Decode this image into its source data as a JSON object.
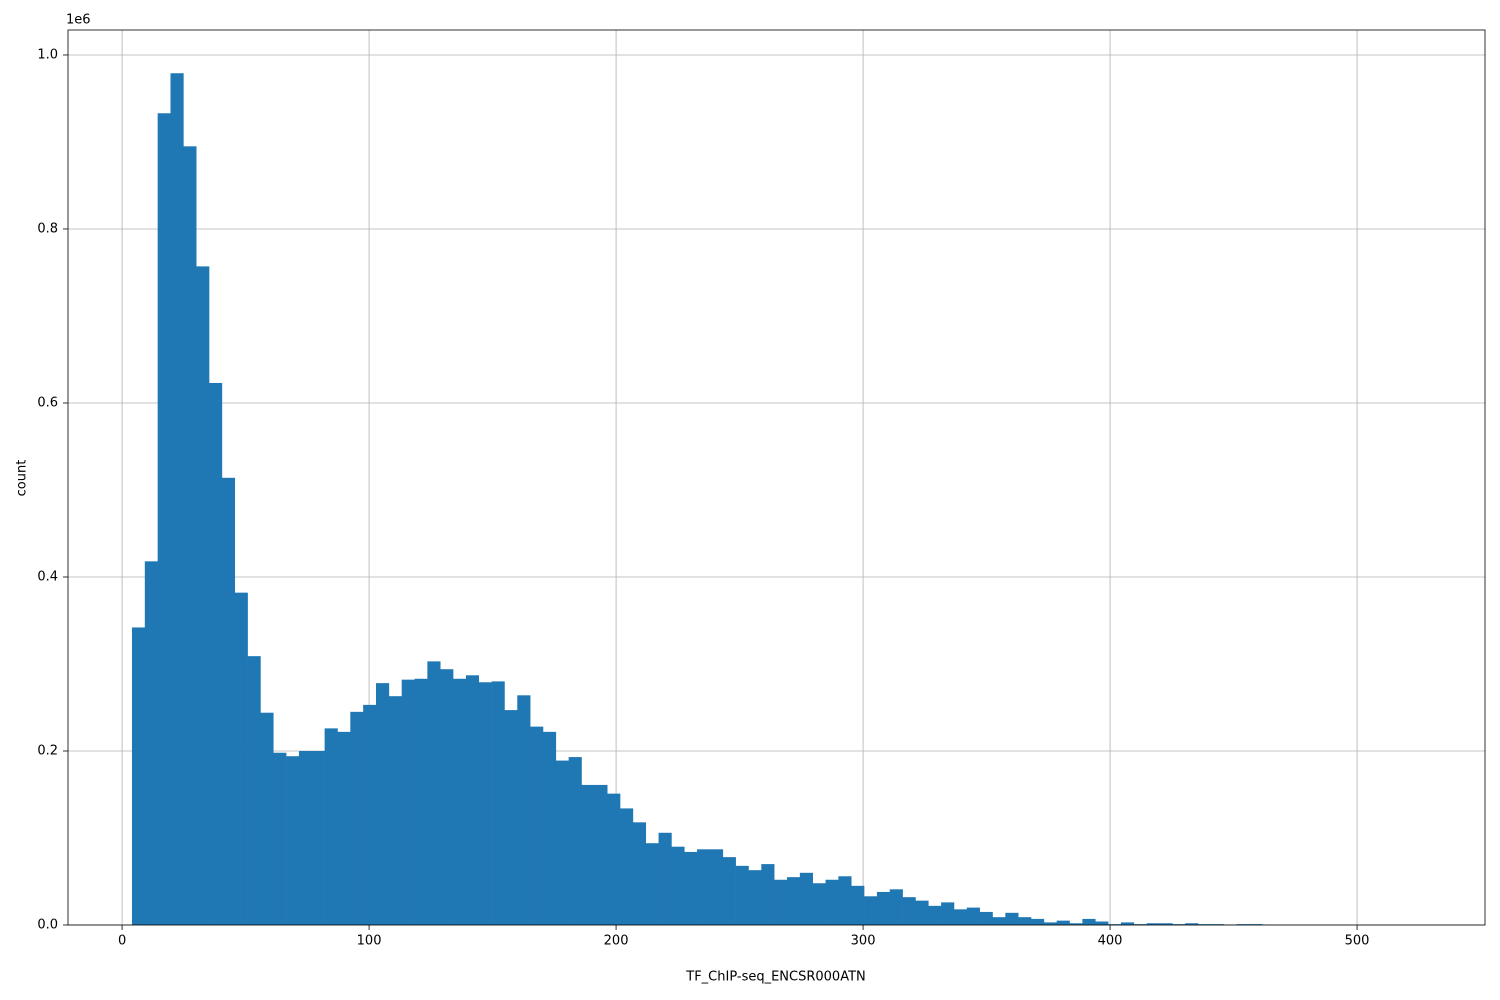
{
  "chart_data": {
    "type": "histogram",
    "xlabel": "TF_ChIP-seq_ENCSR000ATN",
    "ylabel": "count",
    "y_offset_label": "1e6",
    "color": "#1f77b4",
    "grid": true,
    "bins": [
      4,
      9.2,
      14.4,
      19.6,
      24.8,
      30,
      35.2,
      40.4,
      45.6,
      50.8,
      56,
      61.2,
      66.4,
      71.6,
      76.8,
      82,
      87.2,
      92.4,
      97.6,
      102.8,
      108,
      113.2,
      118.4,
      123.6,
      128.8,
      134,
      139.2,
      144.4,
      149.6,
      154.8,
      160,
      165.2,
      170.4,
      175.6,
      180.8,
      186,
      191.2,
      196.4,
      201.6,
      206.8,
      212,
      217.2,
      222.4,
      227.6,
      232.8,
      238,
      243.2,
      248.4,
      253.6,
      258.8,
      264,
      269.2,
      274.4,
      279.6,
      284.8,
      290,
      295.2,
      300.4,
      305.6,
      310.8,
      316,
      321.2,
      326.4,
      331.6,
      336.8,
      342,
      347.2,
      352.4,
      357.6,
      362.8,
      368,
      373.2,
      378.4,
      383.6,
      388.8,
      394,
      399.2,
      404.4,
      409.6,
      414.8,
      420,
      425.2,
      430.4,
      435.6,
      440.8,
      446,
      451.2,
      456.4,
      461.6,
      466.8,
      472,
      477.2,
      482.4,
      487.6,
      492.8,
      498,
      503.2,
      508.4,
      513.6,
      518.8,
      524
    ],
    "values": [
      342000,
      418000,
      933000,
      979000,
      895000,
      757000,
      623000,
      514000,
      382000,
      309000,
      244000,
      198000,
      194000,
      200000,
      200000,
      226000,
      222000,
      245000,
      253000,
      278000,
      263000,
      282000,
      283000,
      303000,
      294000,
      283000,
      287000,
      279000,
      280000,
      247000,
      264000,
      228000,
      222000,
      189000,
      193000,
      161000,
      161000,
      151000,
      134000,
      118000,
      94000,
      106000,
      90000,
      84000,
      87000,
      87000,
      78000,
      68000,
      63000,
      70000,
      52000,
      55000,
      60000,
      48000,
      52000,
      56000,
      45000,
      33000,
      38000,
      41000,
      32000,
      28000,
      22000,
      26000,
      18000,
      20000,
      15000,
      9000,
      14000,
      9000,
      7000,
      3000,
      5000,
      2000,
      7000,
      4000,
      1000,
      3000,
      1000,
      2000,
      2000,
      1000,
      2000,
      1000,
      1000,
      500,
      1000,
      1000,
      300,
      200,
      200,
      100,
      100,
      100,
      100,
      50,
      50,
      50,
      50,
      30
    ],
    "xlim": [
      -21.9,
      551.8
    ],
    "ylim": [
      0,
      1028700
    ],
    "xticks": [
      0,
      100,
      200,
      300,
      400,
      500
    ],
    "yticks": [
      {
        "value": 0,
        "label": "0.0"
      },
      {
        "value": 200000,
        "label": "0.2"
      },
      {
        "value": 400000,
        "label": "0.4"
      },
      {
        "value": 600000,
        "label": "0.6"
      },
      {
        "value": 800000,
        "label": "0.8"
      },
      {
        "value": 1000000,
        "label": "1.0"
      }
    ]
  }
}
